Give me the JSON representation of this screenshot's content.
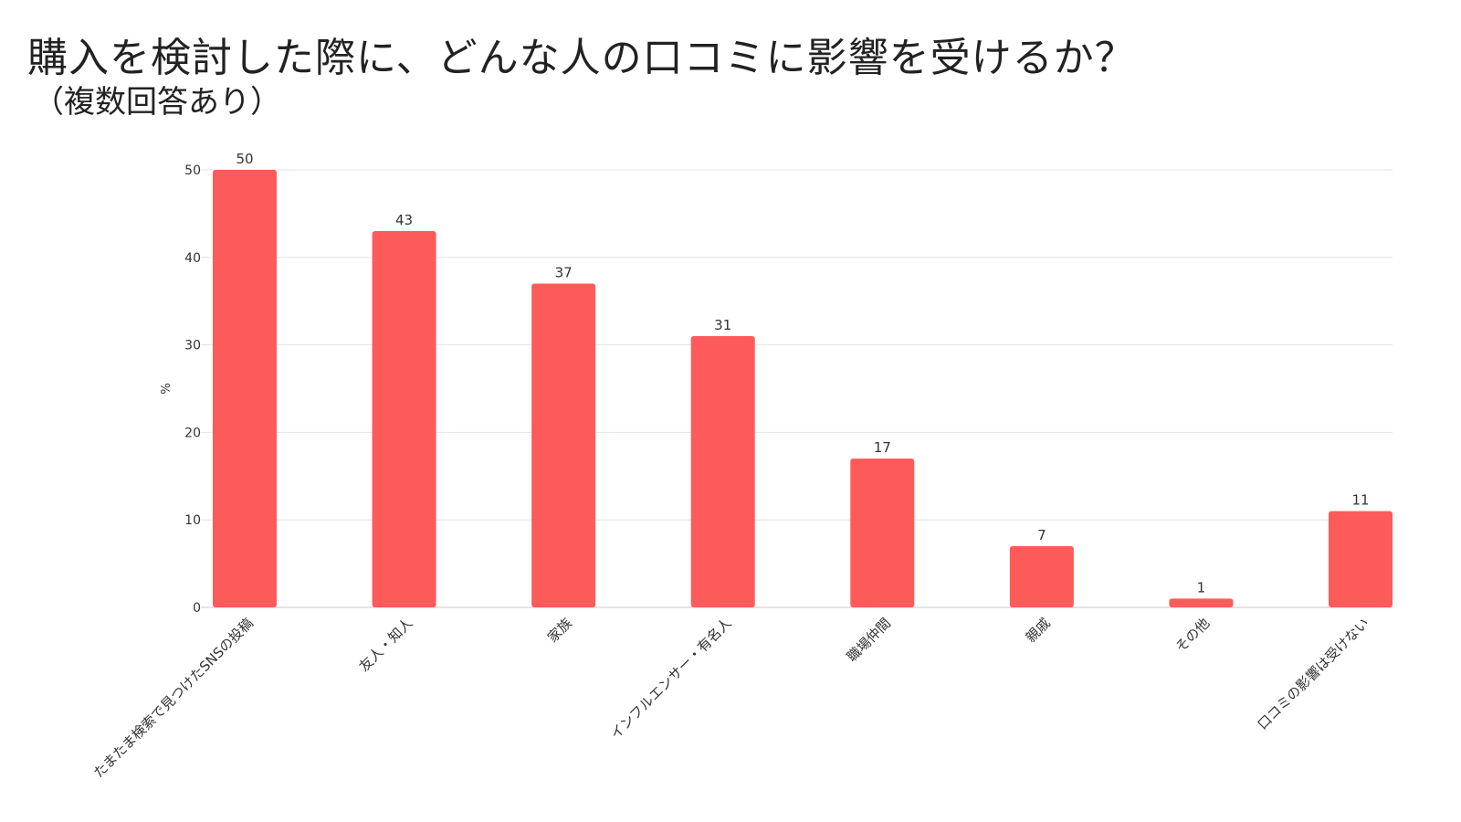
{
  "title": "購入を検討した際に、どんな人の口コミに影響を受けるか？",
  "subtitle": "（複数回答あり）",
  "chart_data": {
    "type": "bar",
    "categories": [
      "たまたま検索で見つけたSNSの投稿",
      "友人・知人",
      "家族",
      "インフルエンサー・有名人",
      "職場仲間",
      "親戚",
      "その他",
      "口コミの影響は受けない"
    ],
    "values": [
      50,
      43,
      37,
      31,
      17,
      7,
      1,
      11
    ],
    "ylabel": "%",
    "xlabel": "",
    "ylim": [
      0,
      50
    ],
    "yticks": [
      0,
      10,
      20,
      30,
      40,
      50
    ],
    "grid": true,
    "legend": "none",
    "bar_color": "#fd5a5a",
    "data_labels": true
  }
}
